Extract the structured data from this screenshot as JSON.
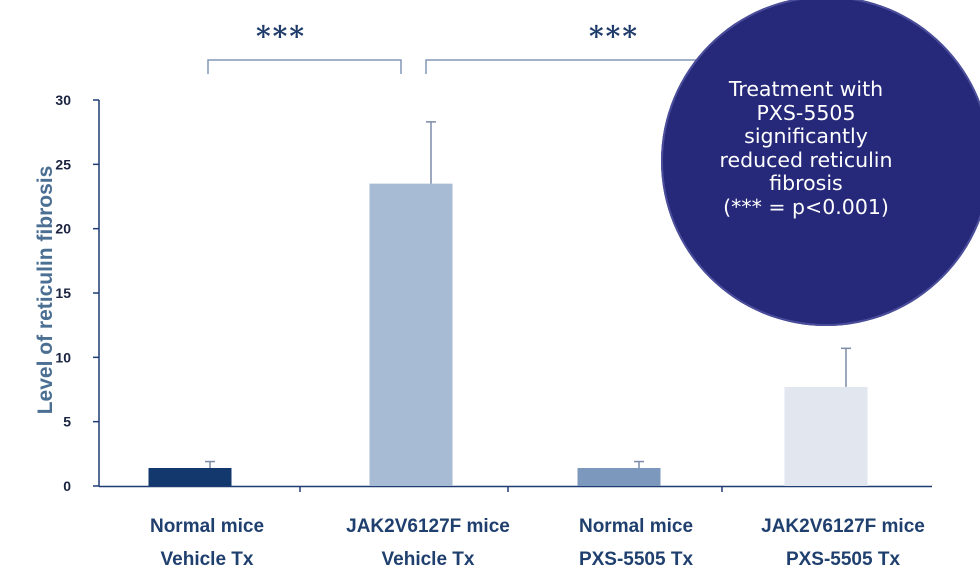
{
  "chart_data": {
    "type": "bar",
    "categories": [
      [
        "Normal mice",
        "Vehicle Tx"
      ],
      [
        "JAK2V6127F mice",
        "Vehicle Tx"
      ],
      [
        "Normal mice",
        "PXS-5505 Tx"
      ],
      [
        "JAK2V6127F mice",
        "PXS-5505 Tx"
      ]
    ],
    "values": [
      1.4,
      23.5,
      1.4,
      7.7
    ],
    "error_bars": [
      0.5,
      4.8,
      0.5,
      3.0
    ],
    "bar_colors": [
      "#13386e",
      "#a7bbd4",
      "#7c98bd",
      "#e1e6ef"
    ],
    "ylabel": "Level of reticulin fibrosis",
    "ylim": [
      0,
      30
    ],
    "yticks": [
      0,
      5,
      10,
      15,
      20,
      25,
      30
    ],
    "grid": false,
    "annotations": {
      "significance_label": "***",
      "brackets": [
        {
          "from": 0,
          "to": 1,
          "label": "***"
        },
        {
          "from": 1,
          "to": 3,
          "label": "***"
        }
      ]
    }
  },
  "callout": {
    "text": "Treatment with\nPXS-5505\nsignificantly\nreduced reticulin\nfibrosis\n(*** = p<0.001)",
    "color": "#26287a"
  },
  "colors": {
    "axis": "#1f3b73",
    "error_bar": "#7b8ba8",
    "bracket": "#8497b8",
    "ylabel": "#4b6f93"
  }
}
